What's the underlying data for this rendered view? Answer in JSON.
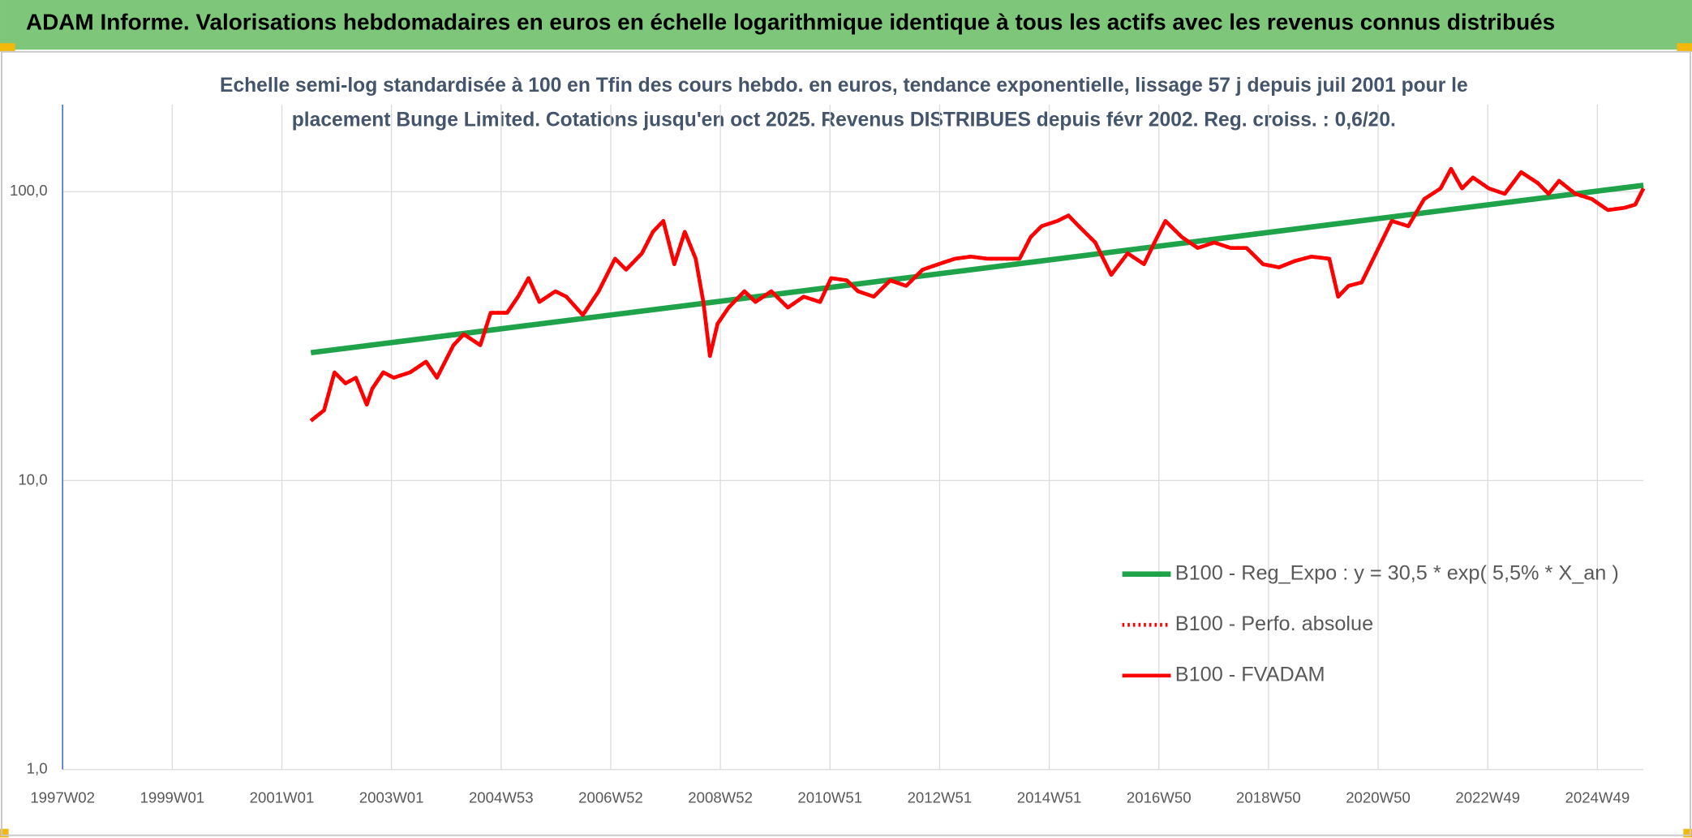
{
  "header": {
    "title": "ADAM Informe. Valorisations hebdomadaires en euros en échelle logarithmique identique à tous les actifs avec les revenus connus distribués"
  },
  "chart_data": {
    "type": "line",
    "title_lines": [
      "Echelle semi-log standardisée à 100 en Tfin des cours hebdo. en euros, tendance exponentielle, lissage 57 j depuis juil 2001 pour le",
      "placement Bunge Limited. Cotations jusqu'en oct 2025. Revenus DISTRIBUES depuis févr 2002. Reg. croiss. : 0,6/20."
    ],
    "log_y": true,
    "grid": true,
    "legend": "right",
    "ylim": [
      1,
      200
    ],
    "yticks": [
      {
        "value": 1,
        "label": "1,0"
      },
      {
        "value": 10,
        "label": "10,0"
      },
      {
        "value": 100,
        "label": "100,0"
      }
    ],
    "xlim": [
      1997,
      2025.84
    ],
    "xticks": [
      {
        "value": 1997,
        "label": "1997W02"
      },
      {
        "value": 1999,
        "label": "1999W01"
      },
      {
        "value": 2001,
        "label": "2001W01"
      },
      {
        "value": 2003,
        "label": "2003W01"
      },
      {
        "value": 2005,
        "label": "2004W53"
      },
      {
        "value": 2007,
        "label": "2006W52"
      },
      {
        "value": 2009,
        "label": "2008W52"
      },
      {
        "value": 2011,
        "label": "2010W51"
      },
      {
        "value": 2013,
        "label": "2012W51"
      },
      {
        "value": 2015,
        "label": "2014W51"
      },
      {
        "value": 2017,
        "label": "2016W50"
      },
      {
        "value": 2019,
        "label": "2018W50"
      },
      {
        "value": 2021,
        "label": "2020W50"
      },
      {
        "value": 2023,
        "label": "2022W49"
      },
      {
        "value": 2025,
        "label": "2024W49"
      }
    ],
    "x": [
      2001.53,
      2001.77,
      2001.96,
      2002.16,
      2002.35,
      2002.55,
      2002.65,
      2002.85,
      2003.04,
      2003.34,
      2003.63,
      2003.83,
      2004.13,
      2004.32,
      2004.62,
      2004.81,
      2005.11,
      2005.31,
      2005.5,
      2005.7,
      2005.99,
      2006.19,
      2006.49,
      2006.78,
      2007.08,
      2007.28,
      2007.57,
      2007.77,
      2007.96,
      2008.16,
      2008.35,
      2008.55,
      2008.69,
      2008.81,
      2008.95,
      2009.15,
      2009.44,
      2009.64,
      2009.93,
      2010.23,
      2010.52,
      2010.82,
      2011.02,
      2011.31,
      2011.51,
      2011.8,
      2012.1,
      2012.39,
      2012.69,
      2012.98,
      2013.28,
      2013.57,
      2013.87,
      2014.17,
      2014.46,
      2014.66,
      2014.86,
      2015.15,
      2015.35,
      2015.54,
      2015.84,
      2016.13,
      2016.43,
      2016.73,
      2016.92,
      2017.12,
      2017.42,
      2017.71,
      2018.01,
      2018.31,
      2018.6,
      2018.9,
      2019.19,
      2019.48,
      2019.78,
      2020.11,
      2020.27,
      2020.46,
      2020.7,
      2020.96,
      2021.25,
      2021.55,
      2021.84,
      2022.14,
      2022.33,
      2022.53,
      2022.73,
      2023.02,
      2023.31,
      2023.61,
      2023.91,
      2024.11,
      2024.3,
      2024.6,
      2024.9,
      2025.19,
      2025.49,
      2025.69,
      2025.84
    ],
    "series": [
      {
        "name": "B100 - Reg_Expo : y = 30,5 * exp( 5,5% *  X_an )",
        "color": "#1fa34a",
        "style": "solid",
        "x": [
          2001.53,
          2025.84
        ],
        "values": [
          27.7,
          105.2
        ]
      },
      {
        "name": "B100 - Perfo. absolue",
        "color": "#ff0000",
        "style": "dotted",
        "values": [
          16.1,
          17.5,
          23.7,
          21.7,
          22.7,
          18.3,
          20.8,
          23.7,
          22.7,
          23.7,
          25.8,
          22.7,
          29.4,
          32.1,
          29.4,
          38.1,
          38.1,
          43.3,
          50.2,
          41.5,
          45.2,
          43.3,
          37.4,
          45.2,
          58.6,
          53.7,
          61.2,
          72.6,
          79.2,
          56.1,
          72.6,
          58.6,
          41.5,
          27.0,
          34.9,
          39.7,
          45.2,
          41.5,
          45.2,
          39.7,
          43.3,
          41.5,
          50.2,
          49.3,
          45.2,
          43.3,
          49.3,
          47.2,
          53.7,
          56.1,
          58.6,
          59.6,
          58.6,
          58.6,
          58.6,
          69.6,
          75.9,
          79.2,
          82.7,
          75.9,
          66.7,
          51.5,
          61.2,
          56.1,
          66.7,
          79.2,
          69.6,
          63.8,
          66.7,
          63.8,
          63.8,
          56.1,
          54.7,
          57.5,
          59.6,
          58.6,
          43.3,
          47.2,
          48.5,
          61.2,
          79.2,
          75.9,
          94.2,
          102.6,
          120,
          102.6,
          111.9,
          102.6,
          98.3,
          116.8,
          107.2,
          98.3,
          109,
          98.3,
          94.2,
          86.4,
          87.9,
          90.2,
          102.6
        ]
      },
      {
        "name": "B100 - FVADAM",
        "color": "#ff0000",
        "style": "solid",
        "values": [
          16.1,
          17.5,
          23.7,
          21.7,
          22.7,
          18.3,
          20.8,
          23.7,
          22.7,
          23.7,
          25.8,
          22.7,
          29.4,
          32.1,
          29.4,
          38.1,
          38.1,
          43.3,
          50.2,
          41.5,
          45.2,
          43.3,
          37.4,
          45.2,
          58.6,
          53.7,
          61.2,
          72.6,
          79.2,
          56.1,
          72.6,
          58.6,
          41.5,
          27.0,
          34.9,
          39.7,
          45.2,
          41.5,
          45.2,
          39.7,
          43.3,
          41.5,
          50.2,
          49.3,
          45.2,
          43.3,
          49.3,
          47.2,
          53.7,
          56.1,
          58.6,
          59.6,
          58.6,
          58.6,
          58.6,
          69.6,
          75.9,
          79.2,
          82.7,
          75.9,
          66.7,
          51.5,
          61.2,
          56.1,
          66.7,
          79.2,
          69.6,
          63.8,
          66.7,
          63.8,
          63.8,
          56.1,
          54.7,
          57.5,
          59.6,
          58.6,
          43.3,
          47.2,
          48.5,
          61.2,
          79.2,
          75.9,
          94.2,
          102.6,
          120,
          102.6,
          111.9,
          102.6,
          98.3,
          116.8,
          107.2,
          98.3,
          109,
          98.3,
          94.2,
          86.4,
          87.9,
          90.2,
          102.6
        ]
      }
    ]
  }
}
